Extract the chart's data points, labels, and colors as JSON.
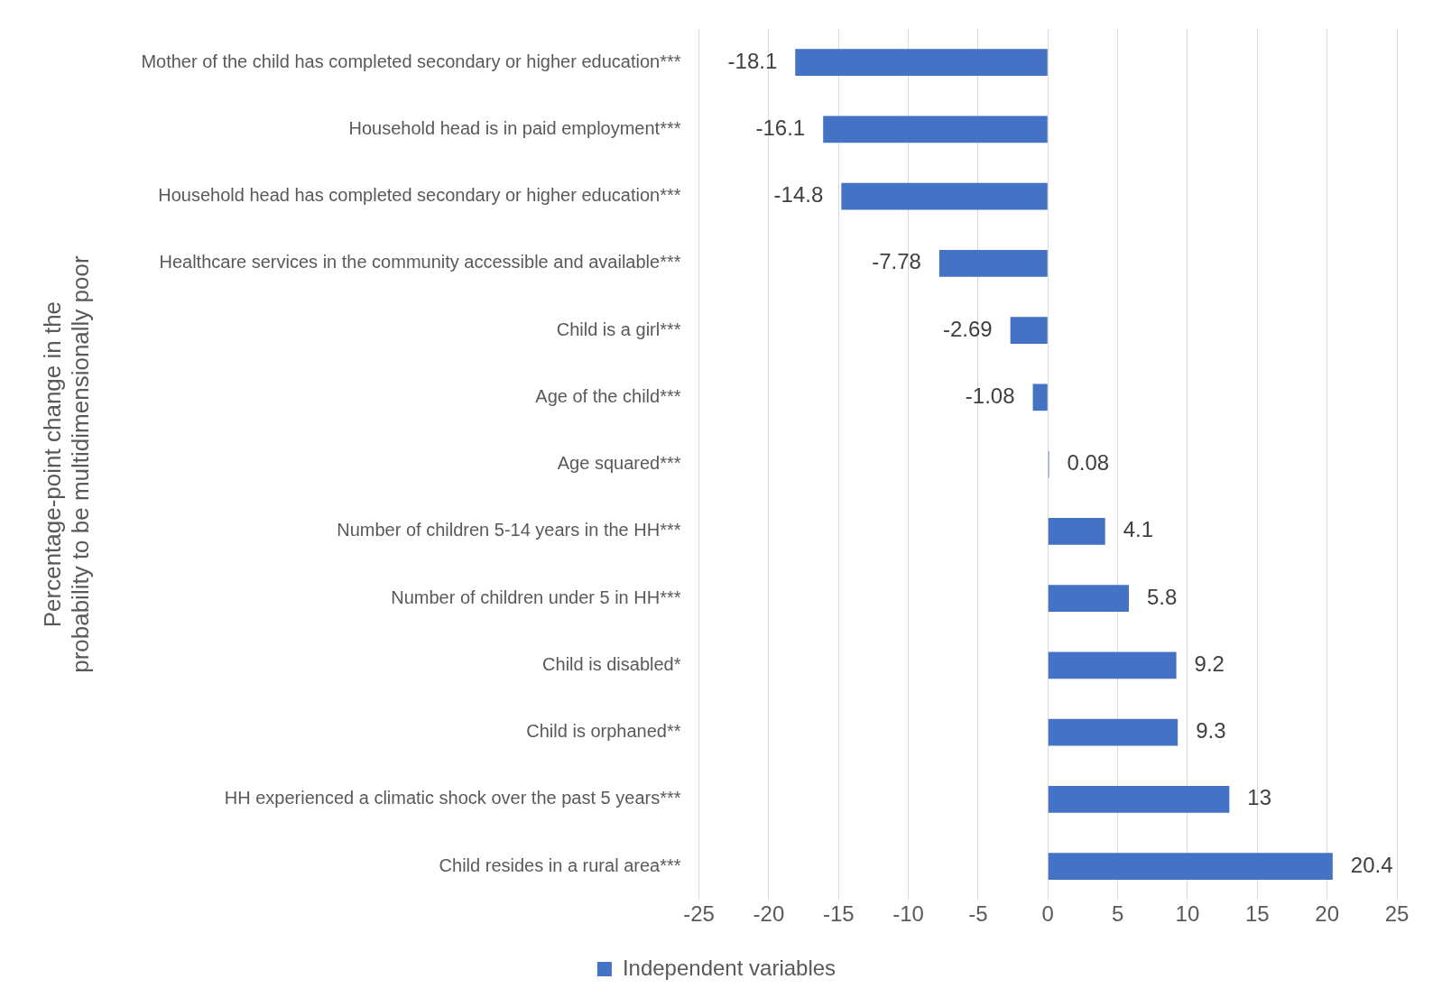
{
  "chart_data": {
    "type": "bar",
    "orientation": "horizontal",
    "ylabel": "Percentage-point change in the probability to be multidimensionally poor",
    "categories": [
      "Mother of the child has completed secondary or higher education***",
      "Household head is in paid employment***",
      "Household head has completed secondary or higher education***",
      "Healthcare services in the community accessible and available***",
      "Child is a girl***",
      "Age of the child***",
      "Age squared***",
      "Number of children 5-14 years in the HH***",
      "Number of children under 5 in HH***",
      "Child is disabled*",
      "Child is orphaned**",
      "HH experienced a climatic shock over the past 5 years***",
      "Child resides in a rural area***"
    ],
    "series": [
      {
        "name": "Independent variables",
        "color": "#4472c4",
        "values": [
          -18.1,
          -16.1,
          -14.8,
          -7.78,
          -2.69,
          -1.08,
          0.08,
          4.1,
          5.8,
          9.2,
          9.3,
          13,
          20.4
        ]
      }
    ],
    "xlim": [
      -25,
      25
    ],
    "xticks": [
      -25,
      -20,
      -15,
      -10,
      -5,
      0,
      5,
      10,
      15,
      20,
      25
    ],
    "grid": "x",
    "legend": "bottom",
    "data_labels": true
  }
}
